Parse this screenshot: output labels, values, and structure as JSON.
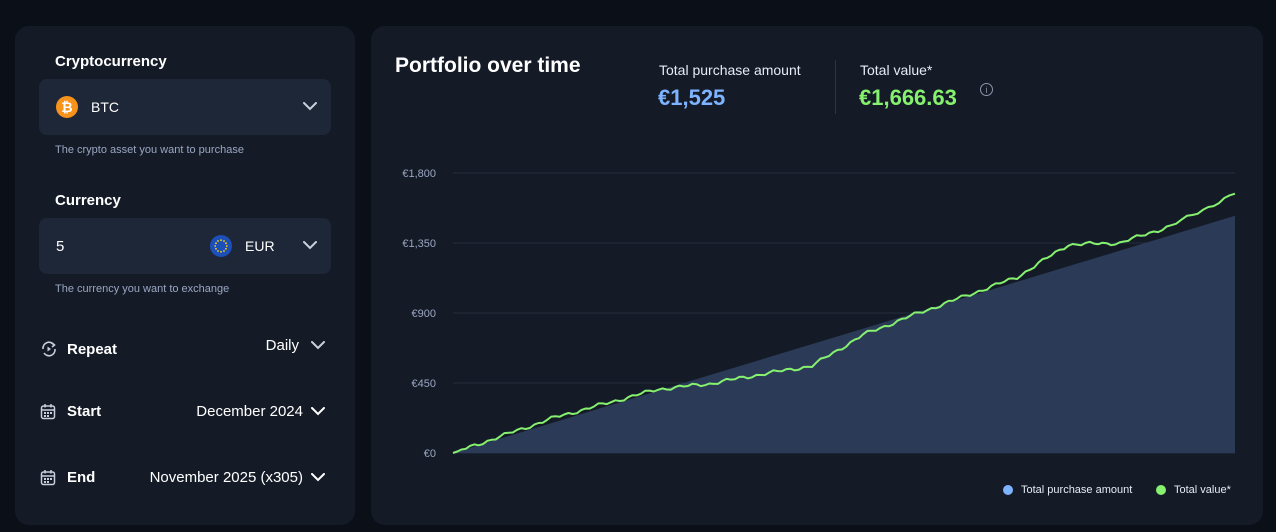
{
  "form": {
    "crypto_label": "Cryptocurrency",
    "crypto_value": "BTC",
    "crypto_icon": "bitcoin-icon",
    "crypto_helper": "The crypto asset you want to purchase",
    "currency_label": "Currency",
    "amount_value": "5",
    "currency_value": "EUR",
    "currency_icon": "euro-flag-icon",
    "currency_helper": "The currency you want to exchange",
    "repeat_label": "Repeat",
    "repeat_value": "Daily",
    "start_label": "Start",
    "start_value": "December 2024",
    "end_label": "End",
    "end_value": "November 2025 (x305)"
  },
  "summary": {
    "title": "Portfolio over time",
    "purchase_label": "Total purchase amount",
    "purchase_value": "€1,525",
    "value_label": "Total value*",
    "value_value": "€1,666.63",
    "info_glyph": "i",
    "purchase_color": "#7db3ff",
    "value_color": "#86f06f"
  },
  "chart_data": {
    "type": "area",
    "y_ticks": [
      "€0",
      "€450",
      "€900",
      "€1,350",
      "€1,800"
    ],
    "y_tick_values": [
      0,
      450,
      900,
      1350,
      1800
    ],
    "ylim": [
      0,
      1800
    ],
    "grid": true,
    "legend_position": "bottom-right",
    "x": [
      0,
      20,
      40,
      60,
      80,
      100,
      120,
      140,
      160,
      180,
      200,
      220,
      240,
      260,
      280,
      305
    ],
    "series": [
      {
        "name": "Total purchase amount",
        "color": "#7db3ff",
        "values": [
          0,
          100,
          200,
          300,
          400,
          500,
          600,
          700,
          800,
          900,
          1000,
          1100,
          1200,
          1300,
          1400,
          1525
        ]
      },
      {
        "name": "Total value*",
        "color": "#86f06f",
        "values": [
          0,
          115,
          230,
          320,
          410,
          445,
          505,
          560,
          760,
          890,
          1010,
          1130,
          1340,
          1350,
          1460,
          1667
        ]
      }
    ]
  }
}
